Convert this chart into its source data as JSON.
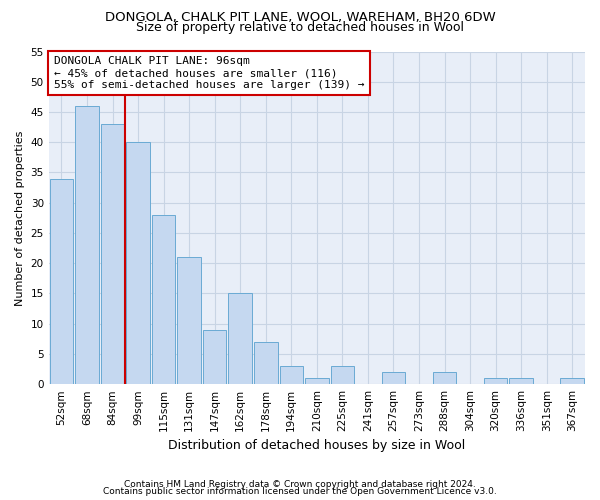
{
  "title1": "DONGOLA, CHALK PIT LANE, WOOL, WAREHAM, BH20 6DW",
  "title2": "Size of property relative to detached houses in Wool",
  "xlabel": "Distribution of detached houses by size in Wool",
  "ylabel": "Number of detached properties",
  "footer1": "Contains HM Land Registry data © Crown copyright and database right 2024.",
  "footer2": "Contains public sector information licensed under the Open Government Licence v3.0.",
  "annotation_line1": "DONGOLA CHALK PIT LANE: 96sqm",
  "annotation_line2": "← 45% of detached houses are smaller (116)",
  "annotation_line3": "55% of semi-detached houses are larger (139) →",
  "bar_labels": [
    "52sqm",
    "68sqm",
    "84sqm",
    "99sqm",
    "115sqm",
    "131sqm",
    "147sqm",
    "162sqm",
    "178sqm",
    "194sqm",
    "210sqm",
    "225sqm",
    "241sqm",
    "257sqm",
    "273sqm",
    "288sqm",
    "304sqm",
    "320sqm",
    "336sqm",
    "351sqm",
    "367sqm"
  ],
  "bar_values": [
    34,
    46,
    43,
    40,
    28,
    21,
    9,
    15,
    7,
    3,
    1,
    3,
    0,
    2,
    0,
    2,
    0,
    1,
    1,
    0,
    1
  ],
  "bar_color": "#c5d8f0",
  "bar_edge_color": "#6aaad4",
  "vline_x": 2.5,
  "vline_color": "#cc0000",
  "ylim": [
    0,
    55
  ],
  "yticks": [
    0,
    5,
    10,
    15,
    20,
    25,
    30,
    35,
    40,
    45,
    50,
    55
  ],
  "grid_color": "#c8d4e4",
  "bg_color": "#e8eef8",
  "annotation_box_edge": "#cc0000",
  "annotation_box_bg": "#ffffff",
  "title_fontsize": 9.5,
  "subtitle_fontsize": 9,
  "xlabel_fontsize": 9,
  "ylabel_fontsize": 8,
  "tick_fontsize": 7.5,
  "annotation_fontsize": 8,
  "footer_fontsize": 6.5
}
